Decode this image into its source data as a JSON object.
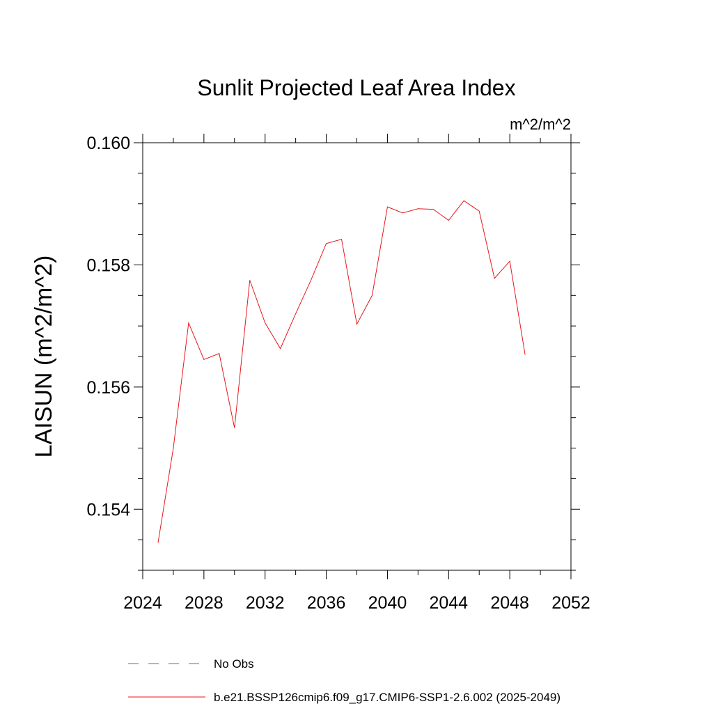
{
  "chart_data": {
    "type": "line",
    "title": "Sunlit Projected Leaf Area Index",
    "units_label": "m^2/m^2",
    "ylabel": "LAISUN  (m^2/m^2)",
    "xlabel": "",
    "xlim": [
      2024,
      2052
    ],
    "ylim": [
      0.153,
      0.16
    ],
    "x_ticks": [
      2024,
      2028,
      2032,
      2036,
      2040,
      2044,
      2048,
      2052
    ],
    "x_tick_labels": [
      "2024",
      "2028",
      "2032",
      "2036",
      "2040",
      "2044",
      "2048",
      "2052"
    ],
    "y_ticks": [
      0.154,
      0.156,
      0.158,
      0.16
    ],
    "y_tick_labels": [
      "0.154",
      "0.156",
      "0.158",
      "0.160"
    ],
    "grid": false,
    "legend_position": "bottom",
    "series": [
      {
        "name": "b.e21.BSSP126cmip6.f09_g17.CMIP6-SSP1-2.6.002 (2025-2049)",
        "color": "#e8161b",
        "style": "solid",
        "x": [
          2025,
          2026,
          2027,
          2028,
          2029,
          2030,
          2031,
          2032,
          2033,
          2034,
          2035,
          2036,
          2037,
          2038,
          2039,
          2040,
          2041,
          2042,
          2043,
          2044,
          2045,
          2046,
          2047,
          2048,
          2049
        ],
        "values": [
          0.15345,
          0.155,
          0.15705,
          0.15645,
          0.15655,
          0.15533,
          0.15775,
          0.15705,
          0.15663,
          0.1572,
          0.15775,
          0.15835,
          0.15842,
          0.15703,
          0.1575,
          0.15895,
          0.15885,
          0.15892,
          0.15891,
          0.15873,
          0.15905,
          0.15888,
          0.15778,
          0.15806,
          0.15653
        ]
      }
    ],
    "legend_entries": [
      {
        "label": "No Obs",
        "color": "#6f5fb0",
        "style": "dashed"
      },
      {
        "label": "b.e21.BSSP126cmip6.f09_g17.CMIP6-SSP1-2.6.002 (2025-2049)",
        "color": "#e8161b",
        "style": "solid"
      }
    ]
  }
}
